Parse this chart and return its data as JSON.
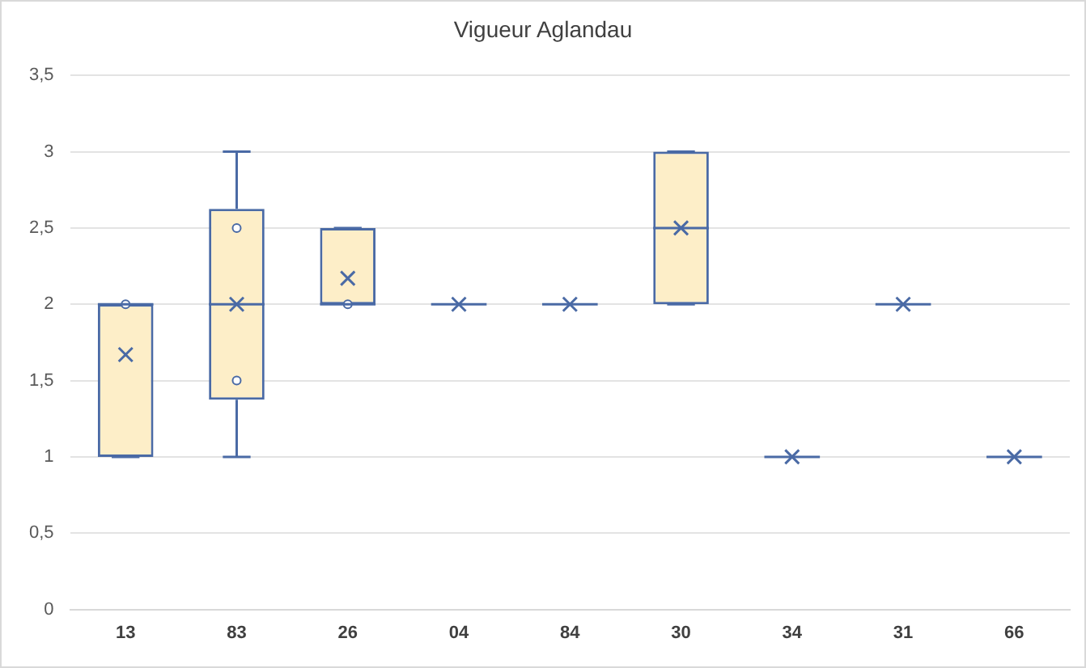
{
  "chart_data": {
    "type": "box",
    "title": "Vigueur Aglandau",
    "categories": [
      "13",
      "83",
      "26",
      "04",
      "84",
      "30",
      "34",
      "31",
      "66"
    ],
    "ylim": [
      0,
      3.5
    ],
    "yticks": [
      0,
      {
        "value": 0.5,
        "label": "0,5"
      },
      1,
      {
        "value": 1.5,
        "label": "1,5"
      },
      2,
      {
        "value": 2.5,
        "label": "2,5"
      },
      3,
      {
        "value": 3.5,
        "label": "3,5"
      }
    ],
    "grid": "y",
    "legend": false,
    "series": [
      {
        "color": "#4a6aa5",
        "marker": "cross",
        "boxes": [
          {
            "low": 1,
            "q1": 1,
            "median": 2,
            "q3": 2,
            "high": 2,
            "mean": 1.67
          },
          {
            "low": 1,
            "q1": 1.375,
            "median": 2,
            "q3": 2.625,
            "high": 3,
            "mean": 2
          },
          {
            "low": 2,
            "q1": 2,
            "median": 2,
            "q3": 2.5,
            "high": 2.5,
            "mean": 2.17
          },
          {
            "low": 2,
            "q1": 2,
            "median": 2,
            "q3": 2,
            "high": 2,
            "mean": 2
          },
          {
            "low": 2,
            "q1": 2,
            "median": 2,
            "q3": 2,
            "high": 2,
            "mean": 2
          },
          {
            "low": 2,
            "q1": 2,
            "median": 2.5,
            "q3": 3,
            "high": 3,
            "mean": 2.5
          },
          {
            "low": 1,
            "q1": 1,
            "median": 1,
            "q3": 1,
            "high": 1,
            "mean": 1
          },
          {
            "low": 2,
            "q1": 2,
            "median": 2,
            "q3": 2,
            "high": 2,
            "mean": 2
          },
          {
            "low": 1,
            "q1": 1,
            "median": 1,
            "q3": 1,
            "high": 1,
            "mean": 1
          }
        ]
      },
      {
        "type": "scatter",
        "color": "#4a6aa5",
        "marker": "circle",
        "x": [
          "13",
          "83",
          "83",
          "26"
        ],
        "values": [
          2,
          2.5,
          1.5,
          2
        ]
      }
    ]
  }
}
